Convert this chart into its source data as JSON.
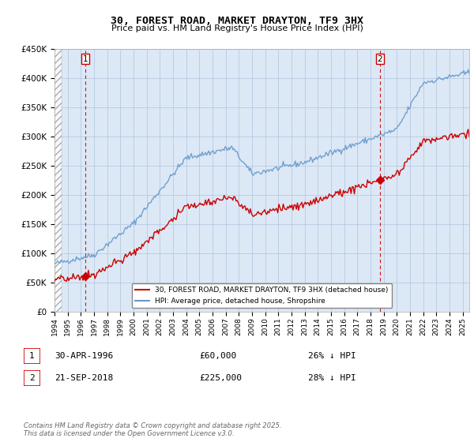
{
  "title": "30, FOREST ROAD, MARKET DRAYTON, TF9 3HX",
  "subtitle": "Price paid vs. HM Land Registry's House Price Index (HPI)",
  "legend_property": "30, FOREST ROAD, MARKET DRAYTON, TF9 3HX (detached house)",
  "legend_hpi": "HPI: Average price, detached house, Shropshire",
  "sale1_date": "30-APR-1996",
  "sale1_price": 60000,
  "sale1_label": "26% ↓ HPI",
  "sale1_year": 1996.33,
  "sale2_date": "21-SEP-2018",
  "sale2_price": 225000,
  "sale2_label": "28% ↓ HPI",
  "sale2_year": 2018.72,
  "ylim": [
    0,
    450000
  ],
  "xlim_start": 1994.0,
  "xlim_end": 2025.5,
  "footer": "Contains HM Land Registry data © Crown copyright and database right 2025.\nThis data is licensed under the Open Government Licence v3.0.",
  "property_color": "#cc0000",
  "hpi_color": "#6699cc",
  "background_color": "#dce8f5",
  "grid_color": "#b0c4de"
}
